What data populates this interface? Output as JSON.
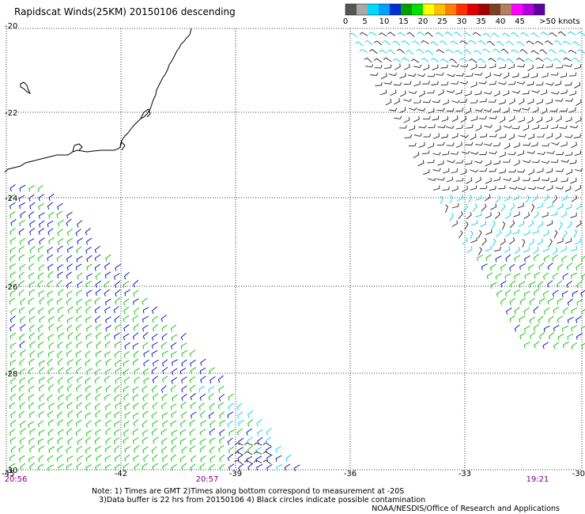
{
  "title": "Rapidscat Winds(25KM) 20150106 descending",
  "legend": {
    "colors": [
      "#555555",
      "#a8a8a8",
      "#00d8ff",
      "#00a0ff",
      "#0030d0",
      "#00a000",
      "#00e000",
      "#ffff00",
      "#ffc000",
      "#ff8000",
      "#ff3000",
      "#e00000",
      "#a00000",
      "#7a4020",
      "#b08060",
      "#ff00ff",
      "#b000e0",
      "#6000a0"
    ],
    "labels": [
      "0",
      "5",
      "10",
      "15",
      "20",
      "25",
      "30",
      "35",
      "40",
      "45",
      ">50 knots"
    ]
  },
  "axes": {
    "lat_labels": [
      "-20",
      "-22",
      "-24",
      "-26",
      "-28",
      "-30"
    ],
    "lon_labels": [
      "-45",
      "-42",
      "-39",
      "-36",
      "-33",
      "-30"
    ]
  },
  "times": [
    "20:56",
    "20:57",
    "19:21"
  ],
  "notes": [
    "Note: 1) Times are GMT 2)Times along bottom correspond to measurement at -20S",
    "3)Data buffer is 22 hrs from 20150106 4) Black circles indicate possible contamination"
  ],
  "credit": "NOAA/NESDIS/Office of Research and Applications",
  "colors": {
    "coast": "#000000",
    "grid": "#000000",
    "calm": "#222222",
    "light": "#00d0f0",
    "moderate": "#00c000",
    "strong": "#0000c0"
  }
}
